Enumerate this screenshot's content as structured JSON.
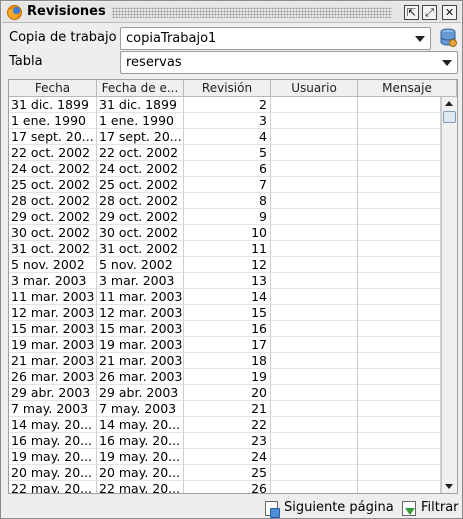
{
  "window": {
    "title": "Revisiones",
    "buttons": {
      "detach": "⇱",
      "maximize": "⤢",
      "close": "✕"
    }
  },
  "form": {
    "working_copy_label": "Copia de trabajo",
    "working_copy_value": "copiaTrabajo1",
    "table_label": "Tabla",
    "table_value": "reservas"
  },
  "table": {
    "columns": [
      "Fecha",
      "Fecha de e...",
      "Revisión",
      "Usuario",
      "Mensaje"
    ],
    "rows": [
      [
        "31 dic. 1899",
        "31 dic. 1899",
        "2",
        "",
        ""
      ],
      [
        "1 ene. 1990",
        "1 ene. 1990",
        "3",
        "",
        ""
      ],
      [
        "17 sept. 20...",
        "17 sept. 20...",
        "4",
        "",
        ""
      ],
      [
        "22 oct. 2002",
        "22 oct. 2002",
        "5",
        "",
        ""
      ],
      [
        "24 oct. 2002",
        "24 oct. 2002",
        "6",
        "",
        ""
      ],
      [
        "25 oct. 2002",
        "25 oct. 2002",
        "7",
        "",
        ""
      ],
      [
        "28 oct. 2002",
        "28 oct. 2002",
        "8",
        "",
        ""
      ],
      [
        "29 oct. 2002",
        "29 oct. 2002",
        "9",
        "",
        ""
      ],
      [
        "30 oct. 2002",
        "30 oct. 2002",
        "10",
        "",
        ""
      ],
      [
        "31 oct. 2002",
        "31 oct. 2002",
        "11",
        "",
        ""
      ],
      [
        "5 nov. 2002",
        "5 nov. 2002",
        "12",
        "",
        ""
      ],
      [
        "3 mar. 2003",
        "3 mar. 2003",
        "13",
        "",
        ""
      ],
      [
        "11 mar. 2003",
        "11 mar. 2003",
        "14",
        "",
        ""
      ],
      [
        "12 mar. 2003",
        "12 mar. 2003",
        "15",
        "",
        ""
      ],
      [
        "15 mar. 2003",
        "15 mar. 2003",
        "16",
        "",
        ""
      ],
      [
        "19 mar. 2003",
        "19 mar. 2003",
        "17",
        "",
        ""
      ],
      [
        "21 mar. 2003",
        "21 mar. 2003",
        "18",
        "",
        ""
      ],
      [
        "26 mar. 2003",
        "26 mar. 2003",
        "19",
        "",
        ""
      ],
      [
        "29 abr. 2003",
        "29 abr. 2003",
        "20",
        "",
        ""
      ],
      [
        "7 may. 2003",
        "7 may. 2003",
        "21",
        "",
        ""
      ],
      [
        "14 may. 20...",
        "14 may. 20...",
        "22",
        "",
        ""
      ],
      [
        "16 may. 20...",
        "16 may. 20...",
        "23",
        "",
        ""
      ],
      [
        "19 may. 20...",
        "19 may. 20...",
        "24",
        "",
        ""
      ],
      [
        "20 may. 20...",
        "20 may. 20...",
        "25",
        "",
        ""
      ],
      [
        "22 may. 20...",
        "22 may. 20...",
        "26",
        "",
        ""
      ]
    ]
  },
  "footer": {
    "next_page_label": "Siguiente página",
    "filter_label": "Filtrar"
  }
}
